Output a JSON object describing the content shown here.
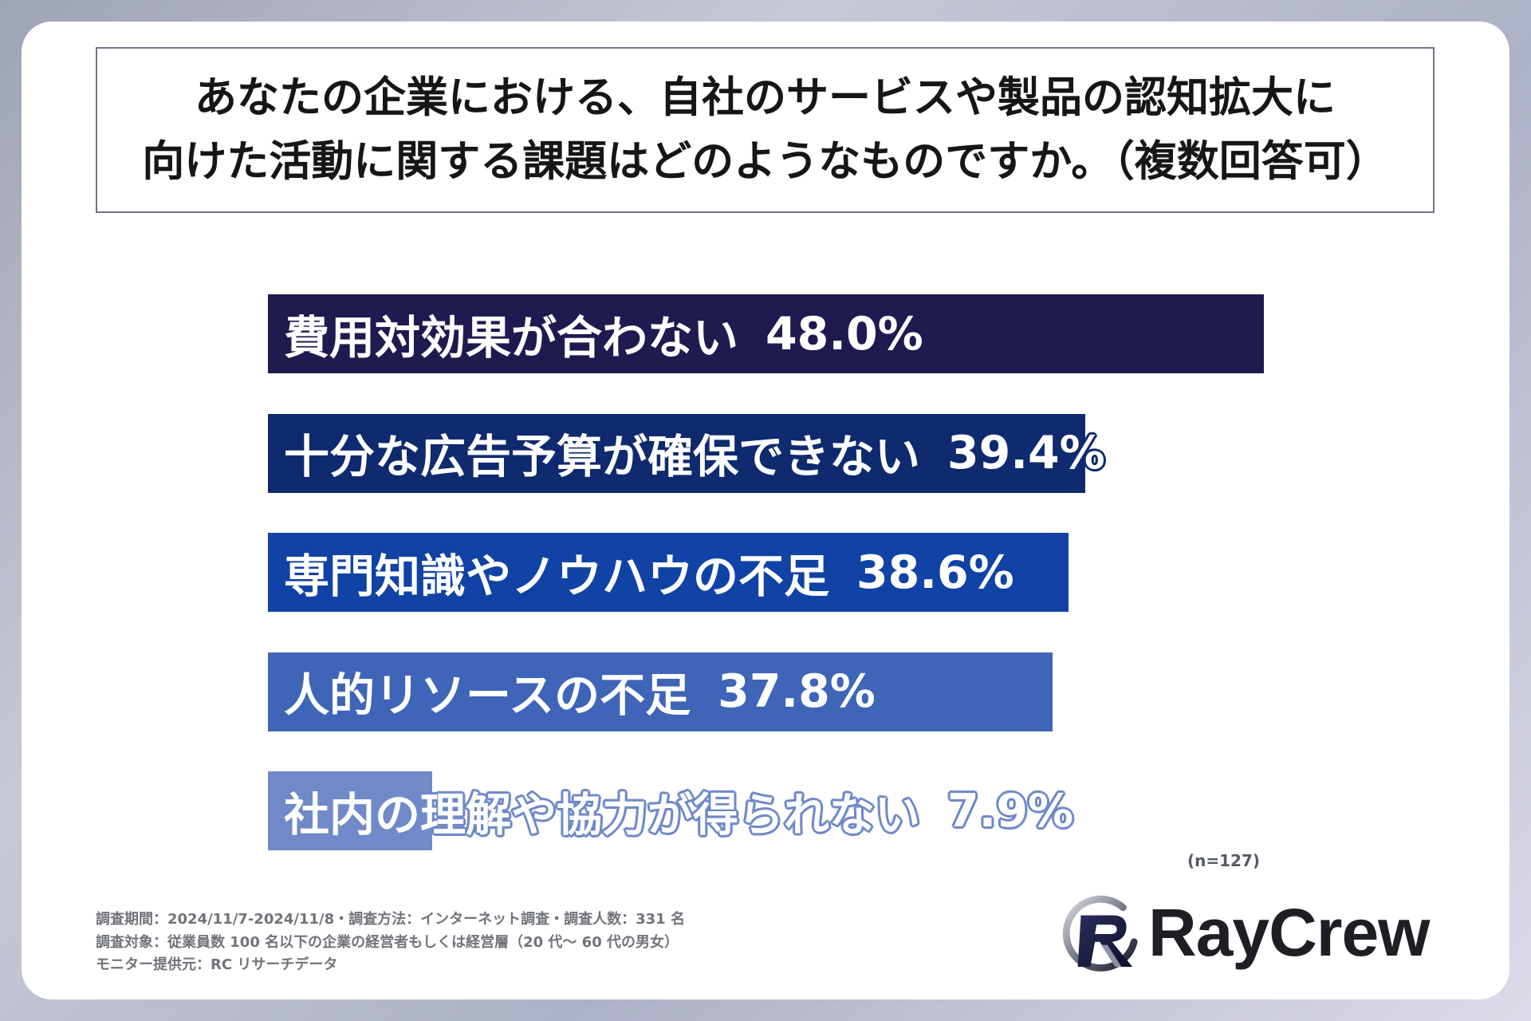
{
  "chart_data": {
    "type": "bar",
    "orientation": "horizontal",
    "title_lines": [
      "あなたの企業における、自社のサービスや製品の認知拡大に",
      "向けた活動に関する課題はどのようなものですか。（複数回答可）"
    ],
    "categories": [
      "費用対効果が合わない",
      "十分な広告予算が確保できない",
      "専門知識やノウハウの不足",
      "人的リソースの不足",
      "社内の理解や協力が得られない"
    ],
    "values": [
      48.0,
      39.4,
      38.6,
      37.8,
      7.9
    ],
    "value_labels": [
      "48.0%",
      "39.4%",
      "38.6%",
      "37.8%",
      "7.9%"
    ],
    "unit": "%",
    "sample_note": "(n=127)",
    "colors": [
      "#1f1a50",
      "#0f2a6e",
      "#1043a5",
      "#3f65b8",
      "#6f89c9"
    ],
    "grid": false,
    "legend": "none"
  },
  "footer": {
    "lines": [
      "調査期間：2024/11/7-2024/11/8・調査方法：インターネット調査・調査人数：331 名",
      "調査対象：従業員数 100 名以下の企業の経営者もしくは経営層（20 代～ 60 代の男女）",
      "モニター提供元：RC リサーチデータ"
    ]
  },
  "logo": {
    "text": "RayCrew",
    "icon": "raycrew-r-icon"
  }
}
